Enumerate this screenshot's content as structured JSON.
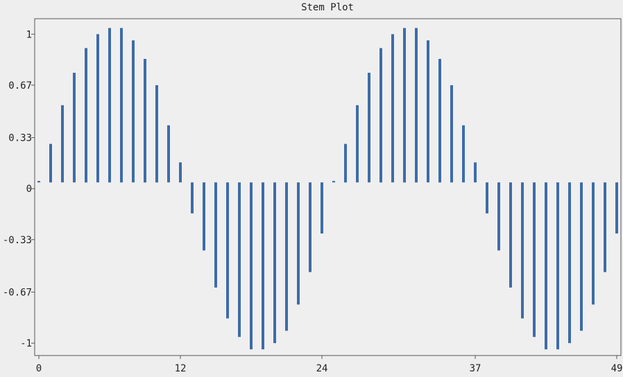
{
  "chart_data": {
    "type": "bar",
    "title": "Stem Plot",
    "xlabel": "",
    "ylabel": "",
    "x": [
      0,
      1,
      2,
      3,
      4,
      5,
      6,
      7,
      8,
      9,
      10,
      11,
      12,
      13,
      14,
      15,
      16,
      17,
      18,
      19,
      20,
      21,
      22,
      23,
      24,
      25,
      26,
      27,
      28,
      29,
      30,
      31,
      32,
      33,
      34,
      35,
      36,
      37,
      38,
      39,
      40,
      41,
      42,
      43,
      44,
      45,
      46,
      47,
      48,
      49
    ],
    "values": [
      0.05,
      0.29,
      0.54,
      0.75,
      0.91,
      1.0,
      1.04,
      1.04,
      0.96,
      0.84,
      0.67,
      0.41,
      0.17,
      -0.16,
      -0.4,
      -0.64,
      -0.84,
      -0.96,
      -1.04,
      -1.04,
      -1.0,
      -0.92,
      -0.75,
      -0.54,
      -0.29,
      0.05,
      0.29,
      0.54,
      0.75,
      0.91,
      1.0,
      1.04,
      1.04,
      0.96,
      0.84,
      0.67,
      0.41,
      0.17,
      -0.16,
      -0.4,
      -0.64,
      -0.84,
      -0.96,
      -1.04,
      -1.04,
      -1.0,
      -0.92,
      -0.75,
      -0.54,
      -0.29
    ],
    "xlim": [
      0,
      49
    ],
    "ylim": [
      -1.08,
      1.1
    ],
    "x_ticks": [
      {
        "value": 0,
        "label": "0"
      },
      {
        "value": 12,
        "label": "12"
      },
      {
        "value": 24,
        "label": "24"
      },
      {
        "value": 37,
        "label": "37"
      },
      {
        "value": 49,
        "label": "49"
      }
    ],
    "y_ticks": [
      {
        "value": 1,
        "label": "1"
      },
      {
        "value": 0.67,
        "label": "0.67"
      },
      {
        "value": 0.33,
        "label": "0.33"
      },
      {
        "value": 0,
        "label": "0"
      },
      {
        "value": -0.33,
        "label": "-0.33"
      },
      {
        "value": -0.67,
        "label": "-0.67"
      },
      {
        "value": -1,
        "label": "-1"
      }
    ],
    "bar_color": "#3d6ca8",
    "grid": false,
    "legend": "none"
  }
}
